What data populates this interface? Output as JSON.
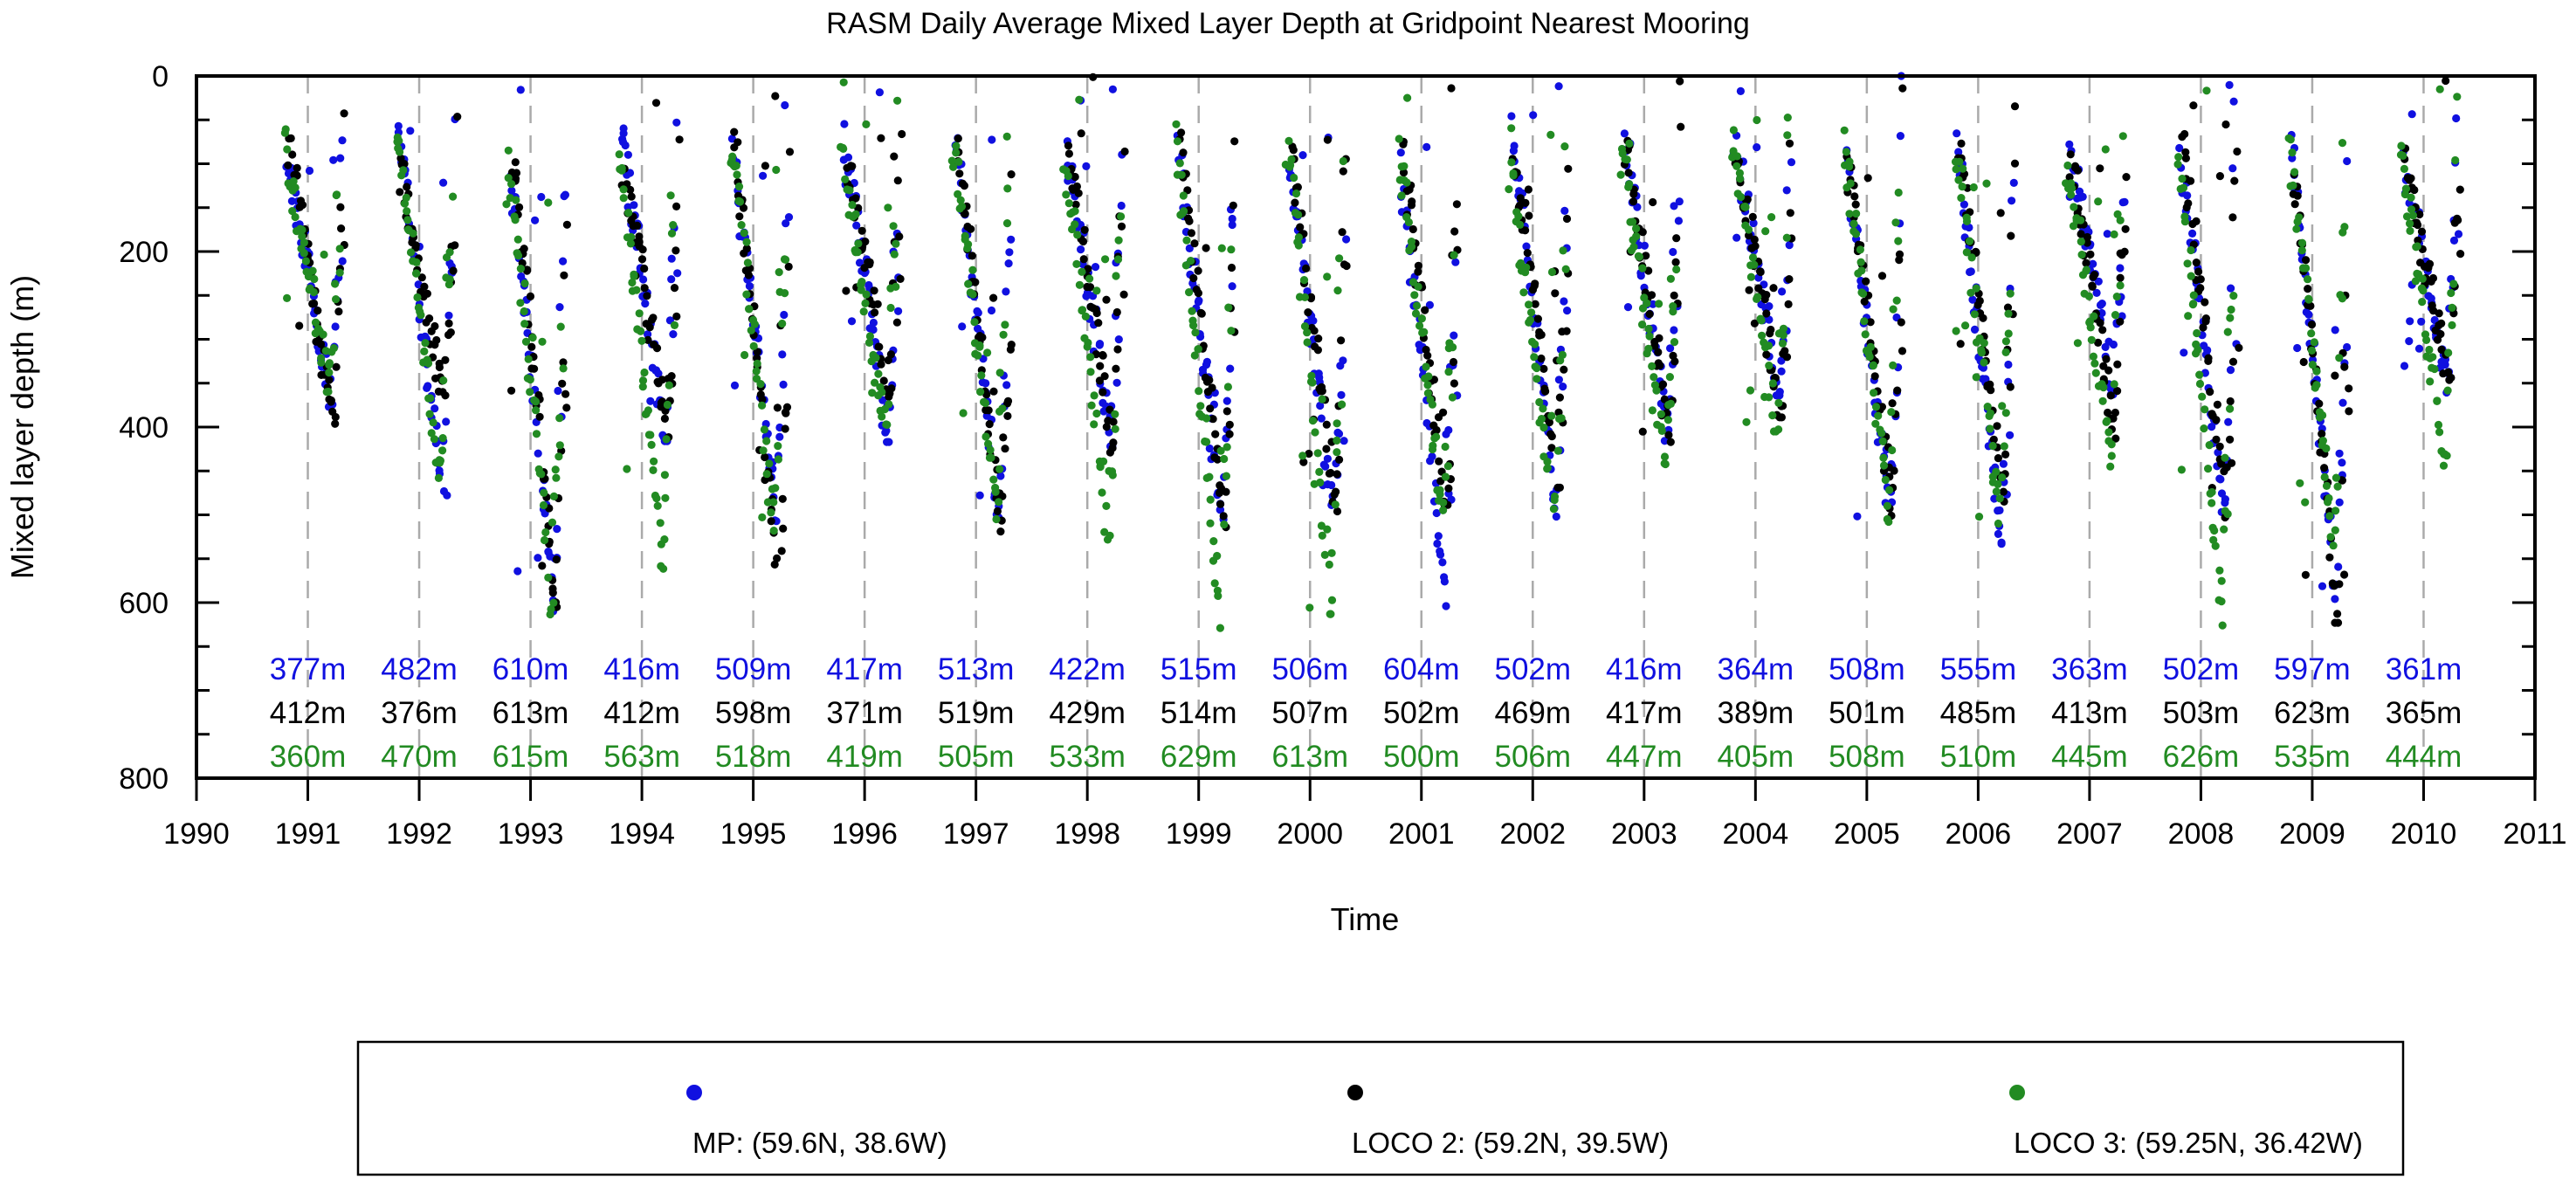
{
  "chart_data": {
    "type": "scatter",
    "title": "RASM Daily Average Mixed Layer Depth at Gridpoint Nearest Mooring",
    "xlabel": "Time",
    "ylabel": "Mixed layer depth (m)",
    "xlim": [
      1990,
      2011
    ],
    "ylim": [
      0,
      800
    ],
    "y_inverted": true,
    "x_ticks": [
      1990,
      1991,
      1992,
      1993,
      1994,
      1995,
      1996,
      1997,
      1998,
      1999,
      2000,
      2001,
      2002,
      2003,
      2004,
      2005,
      2006,
      2007,
      2008,
      2009,
      2010,
      2011
    ],
    "y_ticks": [
      0,
      200,
      400,
      600,
      800
    ],
    "vertical_dashed_lines_at": [
      1991,
      1992,
      1993,
      1994,
      1995,
      1996,
      1997,
      1998,
      1999,
      2000,
      2001,
      2002,
      2003,
      2004,
      2005,
      2006,
      2007,
      2008,
      2009,
      2010
    ],
    "grid": false,
    "legend_position": "bottom",
    "series": [
      {
        "name": "MP: (59.6N, 38.6W)",
        "color": "#1010e0",
        "max_labels": [
          "377m",
          "482m",
          "610m",
          "416m",
          "509m",
          "417m",
          "513m",
          "422m",
          "515m",
          "506m",
          "604m",
          "502m",
          "416m",
          "364m",
          "508m",
          "555m",
          "363m",
          "502m",
          "597m",
          "361m"
        ],
        "max_values": [
          377,
          482,
          610,
          416,
          509,
          417,
          513,
          422,
          515,
          506,
          604,
          502,
          416,
          364,
          508,
          555,
          363,
          502,
          597,
          361
        ]
      },
      {
        "name": "LOCO 2: (59.2N, 39.5W)",
        "color": "#000000",
        "max_labels": [
          "412m",
          "376m",
          "613m",
          "412m",
          "598m",
          "371m",
          "519m",
          "429m",
          "514m",
          "507m",
          "502m",
          "469m",
          "417m",
          "389m",
          "501m",
          "485m",
          "413m",
          "503m",
          "623m",
          "365m"
        ],
        "max_values": [
          412,
          376,
          613,
          412,
          598,
          371,
          519,
          429,
          514,
          507,
          502,
          469,
          417,
          389,
          501,
          485,
          413,
          503,
          623,
          365
        ]
      },
      {
        "name": "LOCO 3: (59.25N, 36.42W)",
        "color": "#228b22",
        "max_labels": [
          "360m",
          "470m",
          "615m",
          "563m",
          "518m",
          "419m",
          "505m",
          "533m",
          "629m",
          "613m",
          "500m",
          "506m",
          "447m",
          "405m",
          "508m",
          "510m",
          "445m",
          "626m",
          "535m",
          "444m"
        ],
        "max_values": [
          360,
          470,
          615,
          563,
          518,
          419,
          505,
          533,
          629,
          613,
          500,
          506,
          447,
          405,
          508,
          510,
          445,
          626,
          535,
          444
        ]
      }
    ]
  }
}
